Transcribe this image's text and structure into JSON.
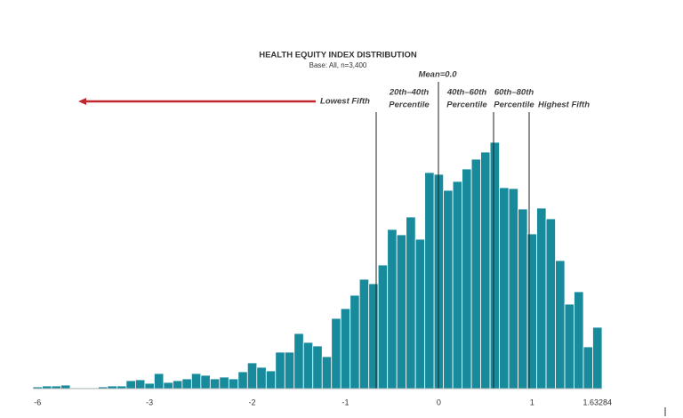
{
  "chart_data": {
    "type": "bar",
    "title": "HEALTH EQUITY INDEX DISTRIBUTION",
    "subtitle": "Base: All, n=3,400",
    "annotations": [
      "Mean=0.0",
      "Lowest Fifth",
      "20th–40th",
      "Percentile",
      "40th–60th",
      "Percentile",
      "60th–80th",
      "Percentile",
      "Highest Fifth"
    ],
    "color": "#178a9c",
    "categories": [
      "-6",
      null,
      null,
      null,
      null,
      null,
      null,
      null,
      null,
      null,
      null,
      null,
      "-3",
      null,
      null,
      null,
      null,
      null,
      null,
      null,
      null,
      null,
      null,
      "-2",
      null,
      null,
      null,
      null,
      null,
      null,
      null,
      null,
      null,
      "-1",
      null,
      null,
      null,
      null,
      null,
      null,
      null,
      null,
      null,
      "0",
      null,
      null,
      null,
      null,
      null,
      null,
      null,
      null,
      null,
      "1",
      null,
      null,
      null,
      null,
      null,
      null,
      "1.63284"
    ],
    "values": [
      2,
      3,
      3,
      4,
      1,
      1,
      1,
      2,
      3,
      3,
      9,
      10,
      6,
      17,
      7,
      9,
      11,
      17,
      15,
      11,
      13,
      11,
      19,
      29,
      24,
      20,
      41,
      41,
      62,
      52,
      48,
      36,
      79,
      90,
      105,
      123,
      118,
      139,
      179,
      173,
      193,
      168,
      243,
      241,
      223,
      233,
      247,
      258,
      266,
      277,
      226,
      225,
      202,
      174,
      203,
      191,
      144,
      95,
      109,
      47,
      69
    ],
    "ylim": [
      0,
      290
    ]
  }
}
